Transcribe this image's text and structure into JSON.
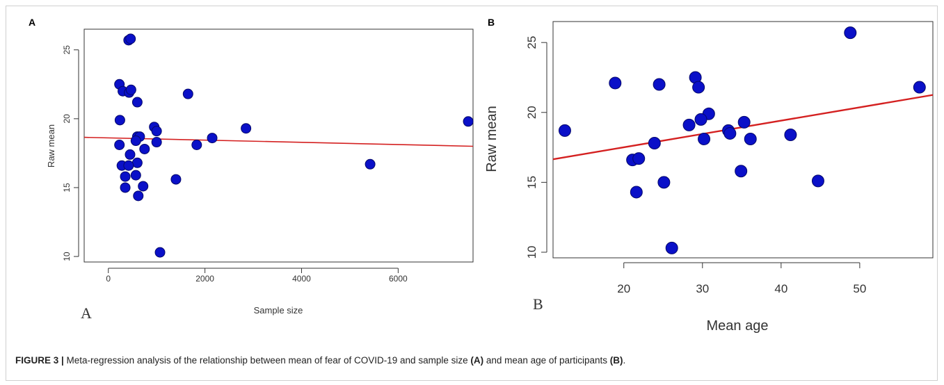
{
  "chart_data": [
    {
      "type": "scatter",
      "panel_label": "A",
      "corner_label": "A",
      "xlabel": "Sample size",
      "ylabel": "Raw mean",
      "xlim": [
        -500,
        7550
      ],
      "ylim": [
        9.6,
        26.5
      ],
      "xticks": [
        0,
        2000,
        4000,
        6000
      ],
      "yticks": [
        10,
        15,
        20,
        25
      ],
      "point_color": "#0a10c8",
      "line_color": "#d42020",
      "regression_line": {
        "x": [
          -500,
          7550
        ],
        "y": [
          18.65,
          18.0
        ]
      },
      "points": [
        {
          "x": 420,
          "y": 25.7
        },
        {
          "x": 460,
          "y": 25.8
        },
        {
          "x": 230,
          "y": 22.5
        },
        {
          "x": 300,
          "y": 22.0
        },
        {
          "x": 430,
          "y": 21.9
        },
        {
          "x": 470,
          "y": 22.1
        },
        {
          "x": 600,
          "y": 21.2
        },
        {
          "x": 1650,
          "y": 21.8
        },
        {
          "x": 240,
          "y": 19.9
        },
        {
          "x": 7450,
          "y": 19.8
        },
        {
          "x": 950,
          "y": 19.4
        },
        {
          "x": 2850,
          "y": 19.3
        },
        {
          "x": 1000,
          "y": 19.1
        },
        {
          "x": 600,
          "y": 18.7
        },
        {
          "x": 650,
          "y": 18.7
        },
        {
          "x": 570,
          "y": 18.4
        },
        {
          "x": 2150,
          "y": 18.6
        },
        {
          "x": 1000,
          "y": 18.3
        },
        {
          "x": 230,
          "y": 18.1
        },
        {
          "x": 1830,
          "y": 18.1
        },
        {
          "x": 750,
          "y": 17.8
        },
        {
          "x": 450,
          "y": 17.4
        },
        {
          "x": 280,
          "y": 16.6
        },
        {
          "x": 600,
          "y": 16.8
        },
        {
          "x": 420,
          "y": 16.6
        },
        {
          "x": 5420,
          "y": 16.7
        },
        {
          "x": 350,
          "y": 15.8
        },
        {
          "x": 570,
          "y": 15.9
        },
        {
          "x": 1400,
          "y": 15.6
        },
        {
          "x": 350,
          "y": 15.0
        },
        {
          "x": 720,
          "y": 15.1
        },
        {
          "x": 620,
          "y": 14.4
        },
        {
          "x": 1070,
          "y": 10.3
        }
      ]
    },
    {
      "type": "scatter",
      "panel_label": "B",
      "corner_label": "B",
      "xlabel": "Mean age",
      "ylabel": "Raw mean",
      "xlim": [
        11.0,
        59.3
      ],
      "ylim": [
        9.6,
        26.5
      ],
      "xticks": [
        20,
        30,
        40,
        50
      ],
      "yticks": [
        10,
        15,
        20,
        25
      ],
      "point_color": "#0a10c8",
      "line_color": "#d42020",
      "regression_line": {
        "x": [
          11.0,
          59.3
        ],
        "y": [
          16.65,
          21.25
        ]
      },
      "points": [
        {
          "x": 48.8,
          "y": 25.7
        },
        {
          "x": 29.1,
          "y": 22.5
        },
        {
          "x": 18.9,
          "y": 22.1
        },
        {
          "x": 24.5,
          "y": 22.0
        },
        {
          "x": 29.5,
          "y": 21.8
        },
        {
          "x": 57.6,
          "y": 21.8
        },
        {
          "x": 30.8,
          "y": 19.9
        },
        {
          "x": 29.8,
          "y": 19.5
        },
        {
          "x": 35.3,
          "y": 19.3
        },
        {
          "x": 28.3,
          "y": 19.1
        },
        {
          "x": 12.5,
          "y": 18.7
        },
        {
          "x": 33.3,
          "y": 18.7
        },
        {
          "x": 33.5,
          "y": 18.5
        },
        {
          "x": 41.2,
          "y": 18.4
        },
        {
          "x": 30.2,
          "y": 18.1
        },
        {
          "x": 36.1,
          "y": 18.1
        },
        {
          "x": 23.9,
          "y": 17.8
        },
        {
          "x": 21.1,
          "y": 16.6
        },
        {
          "x": 21.9,
          "y": 16.7
        },
        {
          "x": 34.9,
          "y": 15.8
        },
        {
          "x": 25.1,
          "y": 15.0
        },
        {
          "x": 44.7,
          "y": 15.1
        },
        {
          "x": 21.6,
          "y": 14.3
        },
        {
          "x": 26.1,
          "y": 10.3
        }
      ]
    }
  ],
  "caption": {
    "prefix": "FIGURE 3 |",
    "text1": " Meta-regression analysis of the relationship between mean of fear of COVID-19 and sample size ",
    "ref_a": "(A)",
    "text2": " and mean age of participants ",
    "ref_b": "(B)",
    "text3": "."
  }
}
